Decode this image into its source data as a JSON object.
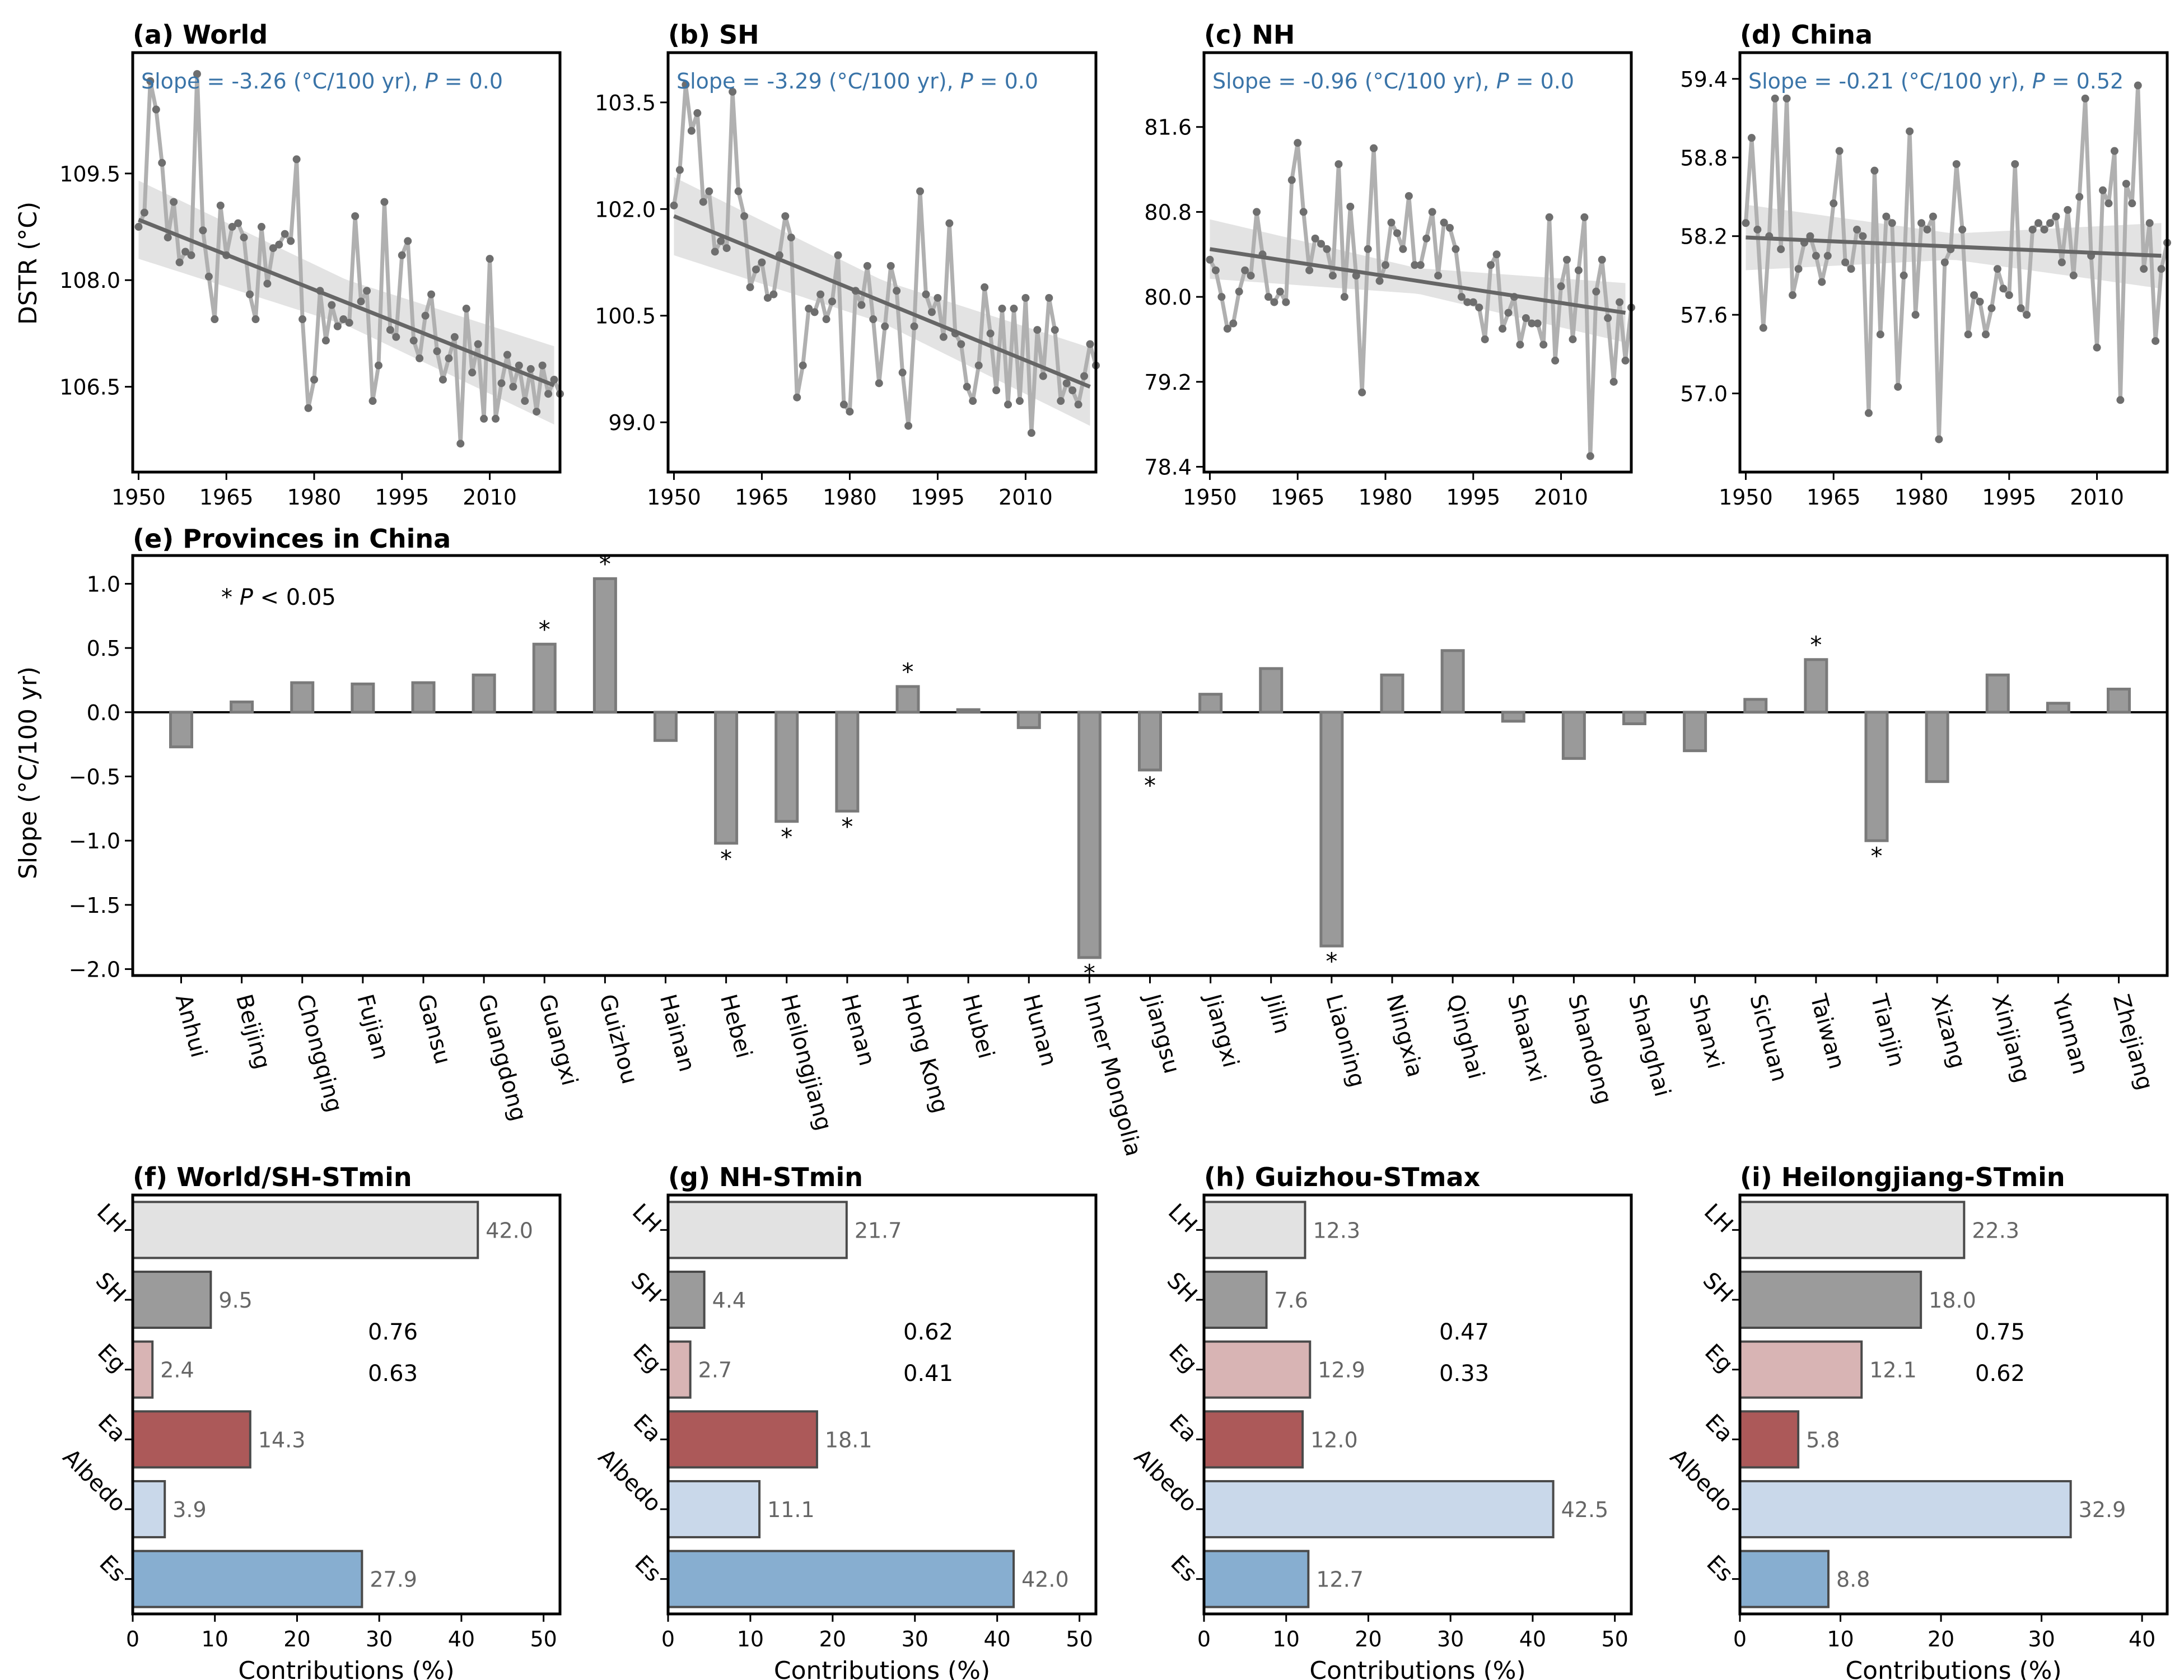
{
  "colors": {
    "series_line": "#b0b0b0",
    "series_dot": "#6e6e6e",
    "trend_line": "#666666",
    "confidence_band": "#e3e3e3",
    "slope_text": "#3a74a8",
    "bar_gray": "#9a9a9a",
    "bar_edge": "#7a7a7a",
    "LH": "#e2e2e2",
    "SH": "#9b9b9b",
    "Eg": "#d8b4b4",
    "Ea": "#ac5959",
    "Albedo": "#c9d8ea",
    "Es": "#87aed0"
  },
  "chart_data": [
    {
      "panel": "a",
      "type": "line",
      "title": "(a) World",
      "slope_text": "Slope = -3.26 (°C/100 yr), P = 0.0",
      "ylabel": "DSTR (°C)",
      "xlabel": "",
      "xlim": [
        1949,
        2022
      ],
      "ylim": [
        105.3,
        111.2
      ],
      "xticks": [
        1950,
        1965,
        1980,
        1995,
        2010
      ],
      "yticks": [
        "109.5",
        "108.0",
        "106.5"
      ],
      "ytick_values": [
        109.5,
        108.0,
        106.5
      ],
      "trend": {
        "start": [
          1950,
          108.85
        ],
        "end": [
          2021,
          106.52
        ]
      },
      "band_halfwidth": [
        0.55,
        0.32,
        0.55
      ],
      "x_start": 1950,
      "values": [
        108.75,
        108.95,
        110.8,
        110.4,
        109.65,
        108.6,
        109.1,
        108.25,
        108.4,
        108.35,
        110.9,
        108.7,
        108.05,
        107.45,
        109.05,
        108.35,
        108.75,
        108.8,
        108.6,
        107.8,
        107.45,
        108.75,
        107.95,
        108.45,
        108.5,
        108.65,
        108.55,
        109.7,
        107.45,
        106.2,
        106.6,
        107.85,
        107.15,
        107.65,
        107.35,
        107.45,
        107.4,
        108.9,
        107.7,
        107.85,
        106.3,
        106.8,
        109.1,
        107.3,
        107.2,
        108.35,
        108.55,
        107.15,
        106.9,
        107.5,
        107.8,
        107.0,
        106.6,
        106.9,
        107.2,
        105.7,
        107.6,
        106.7,
        107.1,
        106.05,
        108.3,
        106.05,
        106.55,
        106.95,
        106.5,
        106.8,
        106.3,
        106.75,
        106.15,
        106.8,
        106.4,
        106.6,
        106.4
      ]
    },
    {
      "panel": "b",
      "type": "line",
      "title": "(b) SH",
      "slope_text": "Slope = -3.29 (°C/100 yr), P = 0.0",
      "xlim": [
        1949,
        2022
      ],
      "ylim": [
        98.3,
        104.2
      ],
      "xticks": [
        1950,
        1965,
        1980,
        1995,
        2010
      ],
      "yticks": [
        "103.5",
        "102.0",
        "100.5",
        "99.0"
      ],
      "ytick_values": [
        103.5,
        102.0,
        100.5,
        99.0
      ],
      "trend": {
        "start": [
          1950,
          101.9
        ],
        "end": [
          2021,
          99.5
        ]
      },
      "band_halfwidth": [
        0.55,
        0.3,
        0.55
      ],
      "x_start": 1950,
      "values": [
        102.05,
        102.55,
        103.75,
        103.1,
        103.35,
        102.1,
        102.25,
        101.4,
        101.55,
        101.45,
        103.65,
        102.25,
        101.9,
        100.9,
        101.15,
        101.25,
        100.75,
        100.8,
        101.35,
        101.9,
        101.6,
        99.35,
        99.8,
        100.6,
        100.55,
        100.8,
        100.45,
        100.7,
        101.35,
        99.25,
        99.15,
        100.85,
        100.65,
        101.2,
        100.45,
        99.55,
        100.35,
        101.2,
        100.85,
        99.7,
        98.95,
        100.35,
        102.25,
        100.8,
        100.55,
        100.75,
        100.2,
        101.8,
        100.25,
        100.1,
        99.5,
        99.3,
        99.8,
        100.9,
        100.25,
        99.45,
        100.6,
        99.25,
        100.6,
        99.3,
        100.75,
        98.85,
        100.3,
        99.65,
        100.75,
        100.3,
        99.3,
        99.55,
        99.45,
        99.25,
        99.65,
        100.1,
        99.8
      ]
    },
    {
      "panel": "c",
      "type": "line",
      "title": "(c) NH",
      "slope_text": "Slope = -0.96 (°C/100 yr), P = 0.0",
      "xlim": [
        1949,
        2022
      ],
      "ylim": [
        78.35,
        82.3
      ],
      "xticks": [
        1950,
        1965,
        1980,
        1995,
        2010
      ],
      "yticks": [
        "81.6",
        "80.8",
        "80.0",
        "79.2",
        "78.4"
      ],
      "ytick_values": [
        81.6,
        80.8,
        80.0,
        79.2,
        78.4
      ],
      "trend": {
        "start": [
          1950,
          80.45
        ],
        "end": [
          2021,
          79.85
        ]
      },
      "band_halfwidth": [
        0.28,
        0.12,
        0.28
      ],
      "x_start": 1950,
      "values": [
        80.35,
        80.25,
        80.0,
        79.7,
        79.75,
        80.05,
        80.25,
        80.2,
        80.8,
        80.4,
        80.0,
        79.95,
        80.05,
        79.95,
        81.1,
        81.45,
        80.8,
        80.25,
        80.55,
        80.5,
        80.45,
        80.2,
        81.25,
        80.0,
        80.85,
        80.2,
        79.1,
        80.45,
        81.4,
        80.15,
        80.3,
        80.7,
        80.6,
        80.45,
        80.95,
        80.3,
        80.3,
        80.55,
        80.8,
        80.2,
        80.7,
        80.65,
        80.45,
        80.0,
        79.95,
        79.95,
        79.9,
        79.6,
        80.3,
        80.4,
        79.7,
        79.85,
        80.0,
        79.55,
        79.8,
        79.75,
        79.75,
        79.55,
        80.75,
        79.4,
        80.1,
        80.35,
        79.6,
        80.25,
        80.75,
        78.5,
        80.05,
        80.35,
        79.8,
        79.2,
        79.95,
        79.4,
        79.9
      ]
    },
    {
      "panel": "d",
      "type": "line",
      "title": "(d) China",
      "slope_text": "Slope = -0.21 (°C/100 yr), P = 0.52",
      "xlim": [
        1949,
        2022
      ],
      "ylim": [
        56.4,
        59.6
      ],
      "xticks": [
        1950,
        1965,
        1980,
        1995,
        2010
      ],
      "yticks": [
        "59.4",
        "58.8",
        "58.2",
        "57.6",
        "57.0"
      ],
      "ytick_values": [
        59.4,
        58.8,
        58.2,
        57.6,
        57.0
      ],
      "trend": {
        "start": [
          1950,
          58.19
        ],
        "end": [
          2021,
          58.05
        ]
      },
      "band_halfwidth": [
        0.25,
        0.1,
        0.25
      ],
      "x_start": 1950,
      "values": [
        58.3,
        58.95,
        58.25,
        57.5,
        58.2,
        59.25,
        58.1,
        59.25,
        57.75,
        57.95,
        58.15,
        58.2,
        58.05,
        57.85,
        58.05,
        58.45,
        58.85,
        58.0,
        57.95,
        58.25,
        58.2,
        56.85,
        58.7,
        57.45,
        58.35,
        58.3,
        57.05,
        57.9,
        59.0,
        57.6,
        58.3,
        58.25,
        58.35,
        56.65,
        58.0,
        58.1,
        58.75,
        58.25,
        57.45,
        57.75,
        57.7,
        57.45,
        57.65,
        57.95,
        57.8,
        57.75,
        58.75,
        57.65,
        57.6,
        58.25,
        58.3,
        58.25,
        58.3,
        58.35,
        58.0,
        58.4,
        57.9,
        58.5,
        59.25,
        58.05,
        57.35,
        58.55,
        58.45,
        58.85,
        56.95,
        58.6,
        58.45,
        59.35,
        57.95,
        58.3,
        57.4,
        57.95,
        58.15
      ]
    },
    {
      "panel": "e",
      "type": "bar",
      "title": "(e) Provinces in China",
      "ylabel": "Slope (°C/100 yr)",
      "annotation": "* P < 0.05",
      "ylim": [
        -2.05,
        1.22
      ],
      "yticks": [
        "−2.0",
        "−1.5",
        "−1.0",
        "−0.5",
        "0.0",
        "0.5",
        "1.0"
      ],
      "ytick_values": [
        -2.0,
        -1.5,
        -1.0,
        -0.5,
        0.0,
        0.5,
        1.0
      ],
      "categories": [
        "Anhui",
        "Beijing",
        "Chongqing",
        "Fujian",
        "Gansu",
        "Guangdong",
        "Guangxi",
        "Guizhou",
        "Hainan",
        "Hebei",
        "Heilongjiang",
        "Henan",
        "Hong Kong",
        "Hubei",
        "Hunan",
        "Inner Mongolia",
        "Jiangsu",
        "Jiangxi",
        "Jilin",
        "Liaoning",
        "Ningxia",
        "Qinghai",
        "Shaanxi",
        "Shandong",
        "Shanghai",
        "Shanxi",
        "Sichuan",
        "Taiwan",
        "Tianjin",
        "Xizang",
        "Xinjiang",
        "Yunnan",
        "Zhejiang"
      ],
      "values": [
        -0.27,
        0.08,
        0.23,
        0.22,
        0.23,
        0.29,
        0.53,
        1.04,
        -0.22,
        -1.02,
        -0.85,
        -0.77,
        0.2,
        0.02,
        -0.12,
        -1.91,
        -0.45,
        0.14,
        0.34,
        -1.82,
        0.29,
        0.48,
        -0.07,
        -0.36,
        -0.09,
        -0.3,
        0.1,
        0.41,
        -1.0,
        -0.54,
        0.29,
        0.07,
        0.18
      ],
      "significant": [
        false,
        false,
        false,
        false,
        false,
        false,
        true,
        true,
        false,
        true,
        true,
        true,
        true,
        false,
        false,
        true,
        true,
        false,
        false,
        true,
        false,
        false,
        false,
        false,
        false,
        false,
        false,
        true,
        true,
        false,
        false,
        false,
        false
      ],
      "sig_marker": "*"
    },
    {
      "panel": "f",
      "type": "bar",
      "orientation": "horizontal",
      "title": "(f) World/SH-STmin",
      "xlabel": "Contributions (%)",
      "xlim": [
        0,
        52
      ],
      "xticks": [
        "0",
        "10",
        "20",
        "30",
        "40",
        "50"
      ],
      "xtick_values": [
        0,
        10,
        20,
        30,
        40,
        50
      ],
      "categories": [
        "LH",
        "SH",
        "Eg",
        "Ea",
        "Albedo",
        "Es"
      ],
      "values": [
        42.0,
        9.5,
        2.4,
        14.3,
        3.9,
        27.9
      ],
      "labels": [
        "42.0",
        "9.5",
        "2.4",
        "14.3",
        "3.9",
        "27.9"
      ],
      "train_r2": "0.76",
      "test_r2": "0.63"
    },
    {
      "panel": "g",
      "type": "bar",
      "orientation": "horizontal",
      "title": "(g) NH-STmin",
      "xlabel": "Contributions (%)",
      "xlim": [
        0,
        52
      ],
      "xticks": [
        "0",
        "10",
        "20",
        "30",
        "40",
        "50"
      ],
      "xtick_values": [
        0,
        10,
        20,
        30,
        40,
        50
      ],
      "categories": [
        "LH",
        "SH",
        "Eg",
        "Ea",
        "Albedo",
        "Es"
      ],
      "values": [
        21.7,
        4.4,
        2.7,
        18.1,
        11.1,
        42.0
      ],
      "labels": [
        "21.7",
        "4.4",
        "2.7",
        "18.1",
        "11.1",
        "42.0"
      ],
      "train_r2": "0.62",
      "test_r2": "0.41"
    },
    {
      "panel": "h",
      "type": "bar",
      "orientation": "horizontal",
      "title": "(h) Guizhou-STmax",
      "xlabel": "Contributions (%)",
      "xlim": [
        0,
        52
      ],
      "xticks": [
        "0",
        "10",
        "20",
        "30",
        "40",
        "50"
      ],
      "xtick_values": [
        0,
        10,
        20,
        30,
        40,
        50
      ],
      "categories": [
        "LH",
        "SH",
        "Eg",
        "Ea",
        "Albedo",
        "Es"
      ],
      "values": [
        12.3,
        7.6,
        12.9,
        12.0,
        42.5,
        12.7
      ],
      "labels": [
        "12.3",
        "7.6",
        "12.9",
        "12.0",
        "42.5",
        "12.7"
      ],
      "train_r2": "0.47",
      "test_r2": "0.33"
    },
    {
      "panel": "i",
      "type": "bar",
      "orientation": "horizontal",
      "title": "(i) Heilongjiang-STmin",
      "xlabel": "Contributions (%)",
      "xlim": [
        0,
        42.5
      ],
      "xticks": [
        "0",
        "10",
        "20",
        "30",
        "40"
      ],
      "xtick_values": [
        0,
        10,
        20,
        30,
        40
      ],
      "categories": [
        "LH",
        "SH",
        "Eg",
        "Ea",
        "Albedo",
        "Es"
      ],
      "values": [
        22.3,
        18.0,
        12.1,
        5.8,
        32.9,
        8.8
      ],
      "labels": [
        "22.3",
        "18.0",
        "12.1",
        "5.8",
        "32.9",
        "8.8"
      ],
      "train_r2": "0.75",
      "test_r2": "0.62"
    }
  ]
}
